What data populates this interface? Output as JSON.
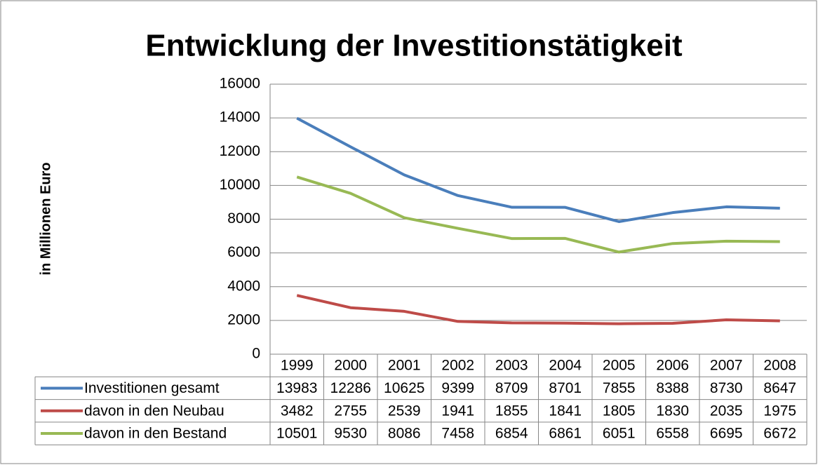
{
  "chart_data": {
    "type": "line",
    "title": "Entwicklung der Investitionstätigkeit",
    "y_label": "in Millionen Euro",
    "categories": [
      "1999",
      "2000",
      "2001",
      "2002",
      "2003",
      "2004",
      "2005",
      "2006",
      "2007",
      "2008"
    ],
    "series": [
      {
        "name": "Investitionen gesamt",
        "color": "#4a7ebb",
        "values": [
          13983,
          12286,
          10625,
          9399,
          8709,
          8701,
          7855,
          8388,
          8730,
          8647
        ]
      },
      {
        "name": "davon in den Neubau",
        "color": "#be4b48",
        "values": [
          3482,
          2755,
          2539,
          1941,
          1855,
          1841,
          1805,
          1830,
          2035,
          1975
        ]
      },
      {
        "name": "davon in den Bestand",
        "color": "#98b954",
        "values": [
          10501,
          9530,
          8086,
          7458,
          6854,
          6861,
          6051,
          6558,
          6695,
          6672
        ]
      }
    ],
    "ylim": [
      0,
      16000
    ],
    "yticks": [
      0,
      2000,
      4000,
      6000,
      8000,
      10000,
      12000,
      14000,
      16000
    ],
    "grid": true
  }
}
